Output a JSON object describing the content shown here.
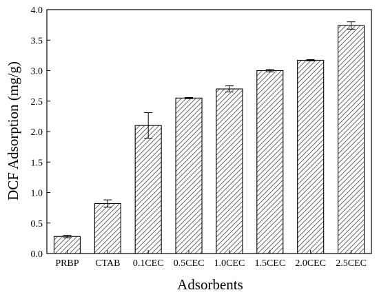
{
  "chart_data": {
    "type": "bar",
    "title": "",
    "xlabel": "Adsorbents",
    "ylabel": "DCF Adsorption (mg/g)",
    "ylim": [
      0.0,
      4.0
    ],
    "yticks": [
      "0.0",
      "0.5",
      "1.0",
      "1.5",
      "2.0",
      "2.5",
      "3.0",
      "3.5",
      "4.0"
    ],
    "categories": [
      "PRBP",
      "CTAB",
      "0.1CEC",
      "0.5CEC",
      "1.0CEC",
      "1.5CEC",
      "2.0CEC",
      "2.5CEC"
    ],
    "values": [
      0.28,
      0.82,
      2.1,
      2.55,
      2.7,
      3.0,
      3.17,
      3.74
    ],
    "errors": [
      0.02,
      0.06,
      0.21,
      0.01,
      0.05,
      0.02,
      0.01,
      0.06
    ],
    "bar_fill_pattern": "diagonal-hatch",
    "bar_color": "#000000",
    "grid": false
  }
}
